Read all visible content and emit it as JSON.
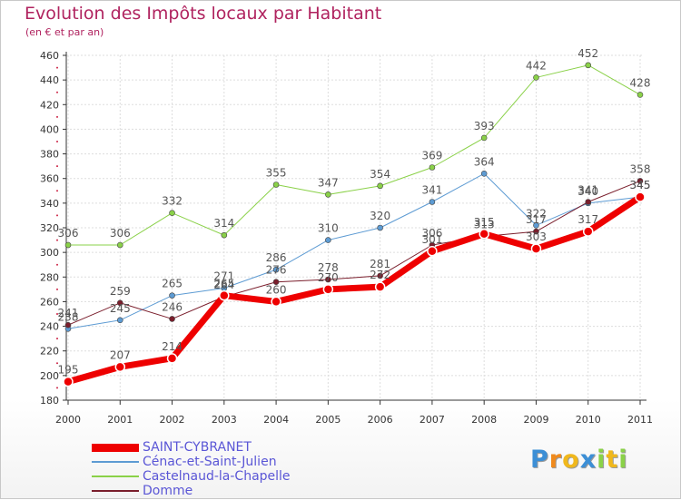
{
  "colors": {
    "title": "#b0235f",
    "axis": "#333333",
    "grid": "#dddddd",
    "legend_text": "#5a56d6",
    "label": "#555555"
  },
  "chart_data": {
    "type": "line",
    "title": "Evolution des Impôts locaux par Habitant",
    "subtitle": "(en € et par an)",
    "xlabel": "",
    "ylabel": "",
    "x": [
      "2000",
      "2001",
      "2002",
      "2003",
      "2004",
      "2005",
      "2006",
      "2007",
      "2008",
      "2009",
      "2010",
      "2011"
    ],
    "ylim": [
      180,
      460
    ],
    "yticks": [
      180,
      200,
      220,
      240,
      260,
      280,
      300,
      320,
      340,
      360,
      380,
      400,
      420,
      440,
      460
    ],
    "grid": true,
    "legend_position": "bottom-left",
    "series": [
      {
        "name": "Castelnaud-la-Chapelle",
        "color": "#8ad148",
        "width": 1,
        "values": [
          306,
          306,
          332,
          314,
          355,
          347,
          354,
          369,
          393,
          442,
          452,
          428
        ]
      },
      {
        "name": "Cénac-et-Saint-Julien",
        "color": "#5d9bd3",
        "width": 1,
        "values": [
          238,
          245,
          265,
          271,
          286,
          310,
          320,
          341,
          364,
          322,
          340,
          345
        ]
      },
      {
        "name": "Domme",
        "color": "#7a1e2c",
        "width": 1,
        "values": [
          241,
          259,
          246,
          264,
          276,
          278,
          281,
          306,
          313,
          317,
          341,
          358
        ]
      },
      {
        "name": "SAINT-CYBRANET",
        "color": "#ee0000",
        "width": 7,
        "values": [
          195,
          207,
          214,
          265,
          260,
          270,
          272,
          301,
          315,
          303,
          317,
          345
        ]
      }
    ]
  },
  "legend": {
    "items": [
      {
        "label": "SAINT-CYBRANET",
        "color": "#ee0000",
        "height": 9
      },
      {
        "label": "Cénac-et-Saint-Julien",
        "color": "#5d9bd3",
        "height": 2
      },
      {
        "label": "Castelnaud-la-Chapelle",
        "color": "#8ad148",
        "height": 2
      },
      {
        "label": "Domme",
        "color": "#7a1e2c",
        "height": 2
      }
    ]
  },
  "logo": {
    "letters": [
      "P",
      "r",
      "o",
      "x",
      "i",
      "t",
      "i"
    ],
    "colors": [
      "#3c8fd6",
      "#f08a1c",
      "#f0b81c",
      "#3c8fd6",
      "#8ad148",
      "#f0b81c",
      "#8ad148"
    ]
  }
}
